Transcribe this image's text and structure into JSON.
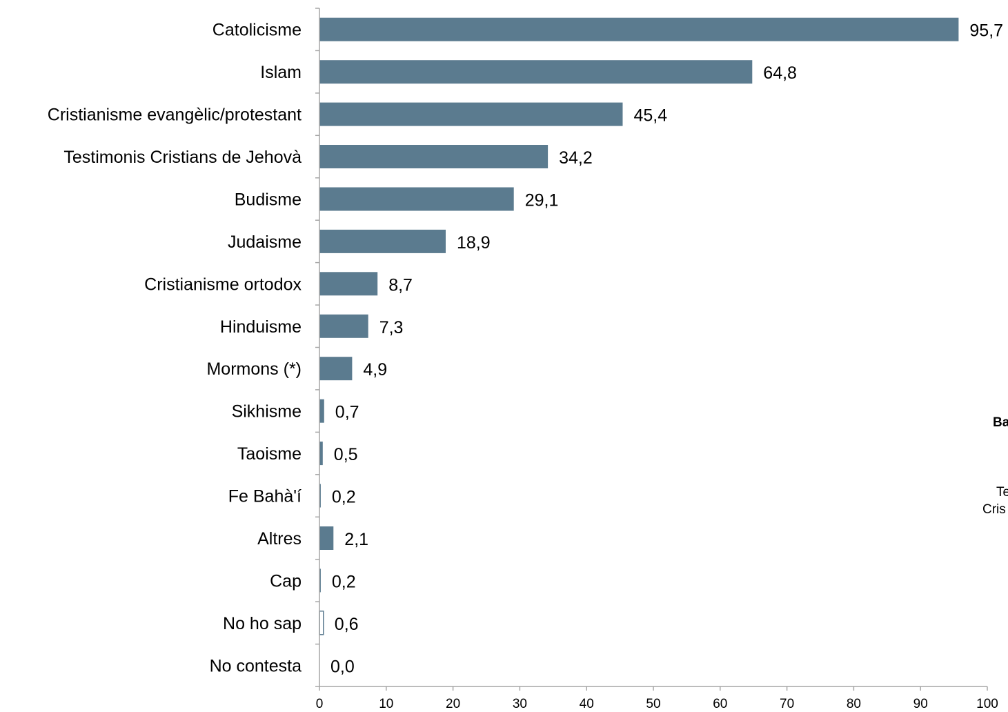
{
  "chart_data": {
    "type": "bar",
    "orientation": "horizontal",
    "categories": [
      "Catolicisme",
      "Islam",
      "Cristianisme evangèlic/protestant",
      "Testimonis Cristians de Jehovà",
      "Budisme",
      "Judaisme",
      "Cristianisme ortodox",
      "Hinduisme",
      "Mormons (*)",
      "Sikhisme",
      "Taoisme",
      "Fe Bahà'í",
      "Altres",
      "Cap",
      "No ho sap",
      "No contesta"
    ],
    "values": [
      95.7,
      64.8,
      45.4,
      34.2,
      29.1,
      18.9,
      8.7,
      7.3,
      4.9,
      0.7,
      0.5,
      0.2,
      2.1,
      0.2,
      0.6,
      0.0
    ],
    "value_labels": [
      "95,7",
      "64,8",
      "45,4",
      "34,2",
      "29,1",
      "18,9",
      "8,7",
      "7,3",
      "4,9",
      "0,7",
      "0,5",
      "0,2",
      "2,1",
      "0,2",
      "0,6",
      "0,0"
    ],
    "outline_only": [
      false,
      false,
      false,
      false,
      false,
      false,
      false,
      false,
      false,
      false,
      false,
      false,
      false,
      false,
      true,
      false
    ],
    "xlim": [
      0,
      100
    ],
    "xticks": [
      0,
      10,
      20,
      30,
      40,
      50,
      60,
      70,
      80,
      90,
      100
    ],
    "xtick_labels": [
      "0",
      "10",
      "20",
      "30",
      "40",
      "50",
      "60",
      "70",
      "80",
      "90",
      "100"
    ],
    "title": "",
    "xlabel": "",
    "ylabel": "",
    "grid": false,
    "bar_color": "#5b7b8f",
    "axis_color": "#a6a6a6"
  },
  "cut_off_text": {
    "line1": "Ba",
    "line2": "Te",
    "line3": "Cris"
  }
}
